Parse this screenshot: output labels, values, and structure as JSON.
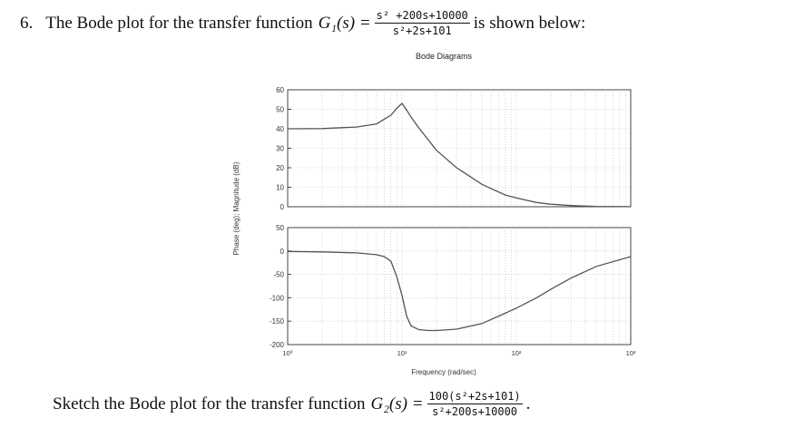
{
  "question": {
    "number": "6.",
    "prefix": "The Bode plot for the transfer function",
    "function_label": "G₁(s) =",
    "numerator": "s² +200s+10000",
    "denominator": "s²+2s+101",
    "suffix": "is shown below:"
  },
  "figure": {
    "title": "Bode Diagrams",
    "ylabel": "Phase (deg); Magnitude (dB)",
    "xlabel": "Frequency (rad/sec)"
  },
  "task": {
    "prefix": "Sketch the Bode plot for the transfer function",
    "function_label": "G₂(s) =",
    "numerator": "100(s²+2s+101)",
    "denominator": "s²+200s+10000",
    "end": "."
  },
  "chart_data": [
    {
      "type": "line",
      "panel": "magnitude",
      "x_scale": "log",
      "xlim": [
        1,
        1000
      ],
      "ylim": [
        0,
        60
      ],
      "yticks": [
        0,
        10,
        20,
        30,
        40,
        50,
        60
      ],
      "grid": true,
      "x": [
        1,
        2,
        4,
        6,
        8,
        9,
        10,
        11,
        12,
        14,
        20,
        30,
        50,
        80,
        100,
        150,
        200,
        300,
        500,
        1000
      ],
      "y": [
        40,
        40.1,
        40.9,
        42.5,
        47,
        50.5,
        53,
        49.5,
        46,
        40.5,
        29,
        20,
        11.5,
        6,
        4.5,
        2.2,
        1.3,
        0.6,
        0.2,
        0.05
      ]
    },
    {
      "type": "line",
      "panel": "phase",
      "x_scale": "log",
      "xlim": [
        1,
        1000
      ],
      "ylim": [
        -200,
        50
      ],
      "yticks": [
        -200,
        -150,
        -100,
        -50,
        0,
        50
      ],
      "grid": true,
      "xticklabels": [
        "10⁰",
        "10¹",
        "10²",
        "10³"
      ],
      "x": [
        1,
        2,
        4,
        6,
        7,
        8,
        9,
        10,
        11,
        12,
        14,
        17,
        20,
        30,
        50,
        80,
        100,
        150,
        200,
        300,
        500,
        1000
      ],
      "y": [
        -1,
        -2,
        -4,
        -8,
        -12,
        -22,
        -55,
        -95,
        -140,
        -160,
        -168,
        -170,
        -170,
        -167,
        -155,
        -133,
        -122,
        -100,
        -82,
        -58,
        -33,
        -12
      ]
    }
  ]
}
